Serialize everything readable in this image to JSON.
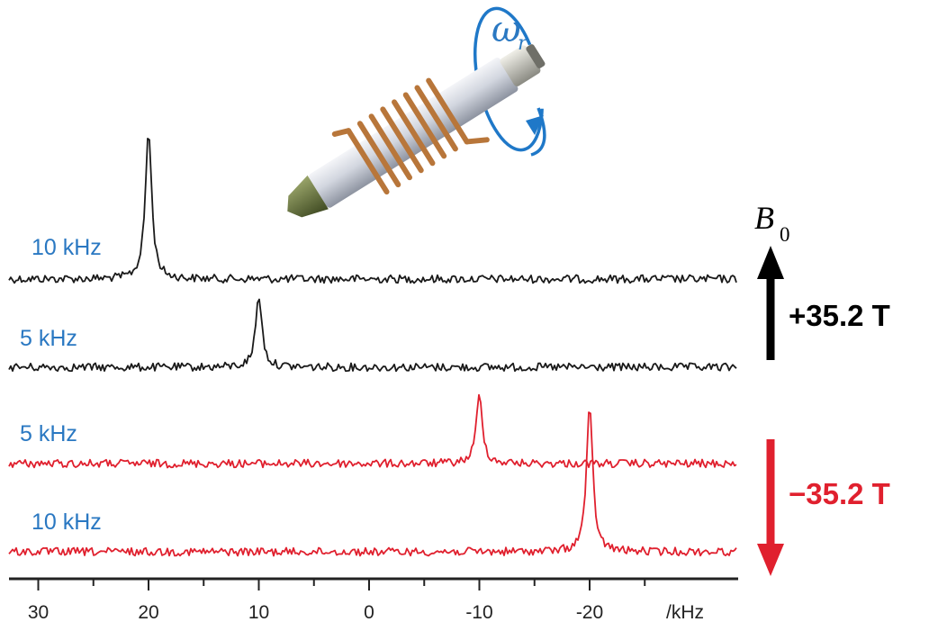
{
  "chart_data": {
    "type": "line",
    "x_unit_label": "/kHz",
    "x_ticks": [
      30,
      20,
      10,
      0,
      -10,
      -20
    ],
    "x_tick_labels": [
      "30",
      "20",
      "10",
      "0",
      "-10",
      "-20"
    ],
    "xlim": [
      32,
      -27
    ],
    "x_reversed": true,
    "series": [
      {
        "name": "10 kHz",
        "field": "+35.2 T",
        "peak_position": 20,
        "peak_intensity": 1.0
      },
      {
        "name": "5 kHz",
        "field": "+35.2 T",
        "peak_position": 10,
        "peak_intensity": 0.55
      },
      {
        "name": "5 kHz",
        "field": "-35.2 T",
        "peak_position": -10,
        "peak_intensity": 0.55
      },
      {
        "name": "10 kHz",
        "field": "-35.2 T",
        "peak_position": -20,
        "peak_intensity": 1.0
      }
    ],
    "b0_symbol": "B",
    "b0_subscript": "0",
    "positive_field_label": "+35.2 T",
    "negative_field_label": "−35.2 T",
    "rotation_symbol": "ω",
    "rotation_subscript": "r"
  },
  "colors": {
    "positive_trace": "#1a1a1a",
    "negative_trace": "#e0202e",
    "label_blue": "#2a78c2",
    "rotor_blue": "#1f78c8",
    "coil": "#b8763a",
    "rotor_body": "#d2d6df",
    "rotor_cap": "#5d6b3a"
  }
}
